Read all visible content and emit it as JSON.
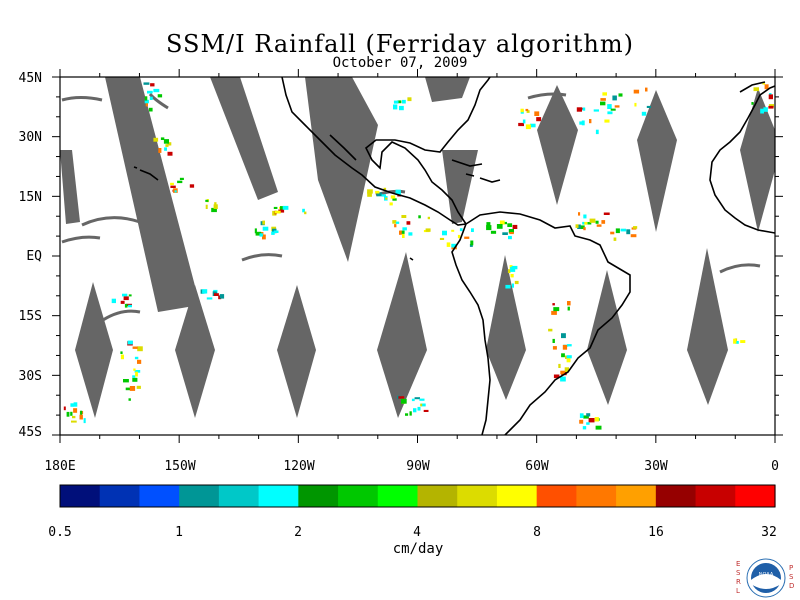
{
  "title": "SSM/I Rainfall (Ferriday algorithm)",
  "subtitle": "October 07, 2009",
  "map": {
    "lat_labels": [
      "45N",
      "30N",
      "15N",
      "EQ",
      "15S",
      "30S",
      "45S"
    ],
    "lon_labels": [
      "180E",
      "150W",
      "120W",
      "90W",
      "60W",
      "30W",
      "0"
    ],
    "extent": {
      "lon_min": -180,
      "lon_max": 0,
      "lat_min": -45,
      "lat_max": 45
    },
    "swath_color": "#666666",
    "coast_color": "#000000"
  },
  "colorbar": {
    "colors": [
      "#000f7a",
      "#0032b4",
      "#0050ff",
      "#009696",
      "#00c8c8",
      "#00ffff",
      "#009600",
      "#00c800",
      "#00ff00",
      "#b4b400",
      "#dcdc00",
      "#ffff00",
      "#ff5000",
      "#ff7800",
      "#ffa000",
      "#960000",
      "#c80000",
      "#ff0000"
    ],
    "tick_labels": [
      "0.5",
      "1",
      "2",
      "4",
      "8",
      "16",
      "32"
    ],
    "unit": "cm/day"
  },
  "logo": {
    "left_text": "ESRL",
    "right_text": "PSD",
    "center_text": "NOAA"
  }
}
